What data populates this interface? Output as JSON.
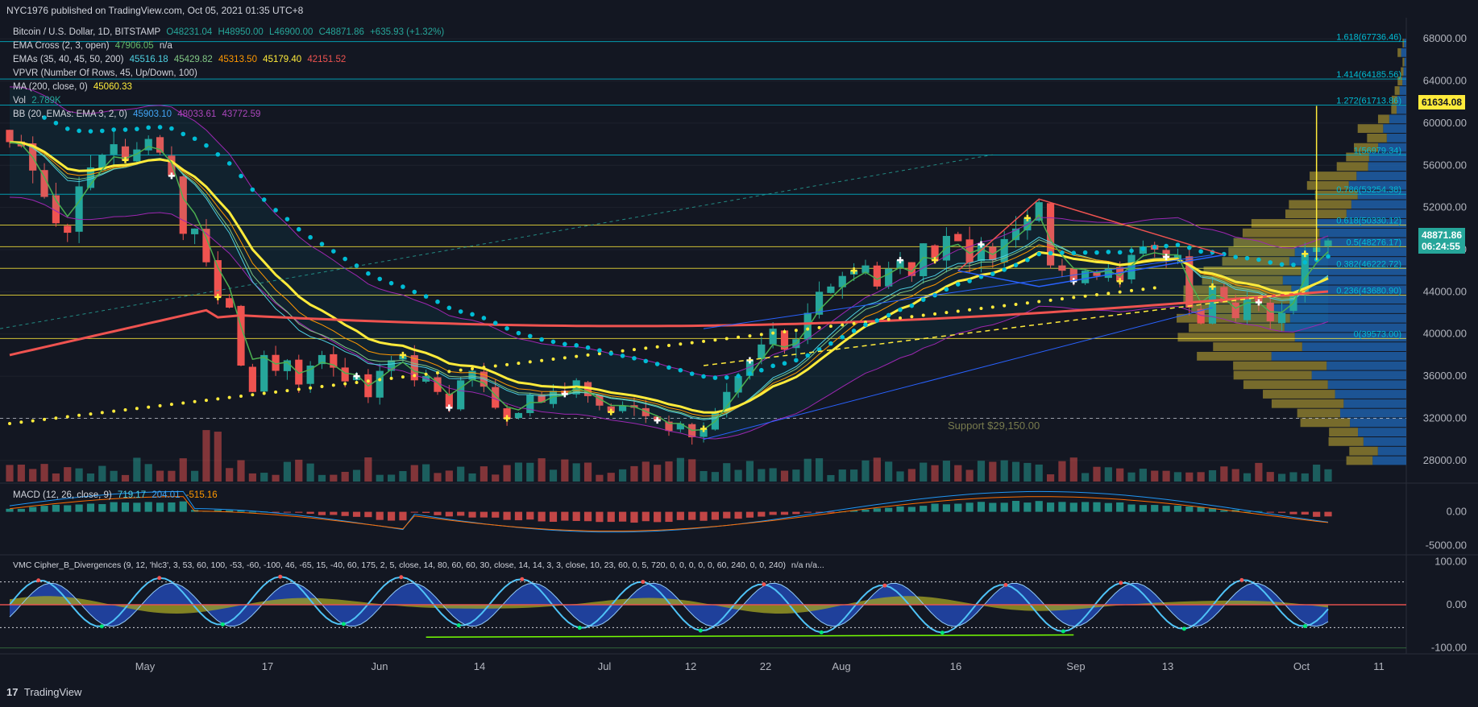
{
  "header": {
    "publisher": "NYC1976 published on TradingView.com, Oct 05, 2021 01:35 UTC+8"
  },
  "footer": {
    "brand": "TradingView",
    "logo": "17"
  },
  "legend": {
    "symbol": "Bitcoin / U.S. Dollar, 1D, BITSTAMP",
    "ohlc": {
      "o": "O48231.04",
      "h": "H48950.00",
      "l": "L46900.00",
      "c": "C48871.86",
      "chg": "+635.93 (+1.32%)"
    },
    "ema_cross": {
      "name": "EMA Cross (2, 3, open)",
      "v1": "47906.05",
      "v2": "n/a"
    },
    "emas": {
      "name": "EMAs (35, 40, 45, 50, 200)",
      "v": [
        "45516.18",
        "45429.82",
        "45313.50",
        "45179.40",
        "42151.52"
      ]
    },
    "vpvr": {
      "name": "VPVR (Number Of Rows, 45, Up/Down, 100)"
    },
    "ma": {
      "name": "MA (200, close, 0)",
      "v": "45060.33"
    },
    "vol": {
      "name": "Vol",
      "v": "2.789K"
    },
    "bb": {
      "name": "BB (20, EMAs: EMA 3, 2, 0)",
      "v": [
        "45903.10",
        "48033.61",
        "43772.59"
      ]
    },
    "macd": {
      "name": "MACD (12, 26, close, 9)",
      "v": [
        "719.17",
        "204.01",
        "-515.16"
      ]
    },
    "cipher": {
      "name": "VMC Cipher_B_Divergences (9, 12, 'hlc3', 3, 53, 60, 100, -53, -60, -100, 46, -65, 15, -40, 60, 175, 2, 5, close, 14, 80, 60, 60, 30, close, 14, 14, 3, 3, close, 10, 23, 60, 0, 5, 720, 0, 0, 0, 0, 0, 60, 240, 0, 0, 240)",
      "tail": "n/a  n/a..."
    }
  },
  "price_tags": {
    "last": "48871.86",
    "countdown": "06:24:55",
    "target": "61634.08"
  },
  "colors": {
    "bg": "#131722",
    "grid": "#1e222d",
    "up": "#26a69a",
    "down": "#ef5350",
    "ema_cross": "#4caf50",
    "ma200": "#ef5350",
    "ema_yellow": "#ffeb3b",
    "dots": "#00bcd4",
    "vpvr_up": "#1e5fa8",
    "vpvr_down": "#8a7a2e",
    "fib": "#00bcd4"
  },
  "chart_data": [
    {
      "type": "candlestick",
      "title": "Bitcoin / U.S. Dollar, 1D, BITSTAMP",
      "price_axis_ticks": [
        "68000.00",
        "64000.00",
        "60000.00",
        "56000.00",
        "52000.00",
        "48000.00",
        "44000.00",
        "40000.00",
        "36000.00",
        "32000.00",
        "28000.00"
      ],
      "ylim": [
        26000,
        70000
      ],
      "x_ticks": [
        "May",
        "17",
        "Jun",
        "14",
        "Jul",
        "12",
        "22",
        "Aug",
        "16",
        "Sep",
        "13",
        "Oct",
        "11"
      ],
      "close_path": [
        58200,
        57800,
        55500,
        53000,
        50500,
        49600,
        54000,
        55800,
        57000,
        58000,
        56500,
        57500,
        58500,
        57200,
        55000,
        49500,
        50000,
        46800,
        43500,
        42500,
        37000,
        34500,
        38000,
        36500,
        37500,
        35200,
        37000,
        38000,
        36800,
        35500,
        36000,
        34000,
        36500,
        37500,
        38000,
        35600,
        36000,
        34500,
        33000,
        35600,
        36500,
        35000,
        33000,
        32000,
        32500,
        34200,
        33500,
        34600,
        34300,
        35600,
        34100,
        33200,
        32600,
        33200,
        33000,
        32200,
        31800,
        30800,
        31500,
        30200,
        31000,
        32500,
        34500,
        36000,
        37500,
        39000,
        40500,
        38500,
        39500,
        42000,
        44000,
        44500,
        45500,
        46000,
        46500,
        44500,
        46200,
        47000,
        45500,
        48600,
        47000,
        49300,
        48800,
        46800,
        48500,
        47000,
        49000,
        50000,
        51000,
        52500,
        46500,
        46000,
        45000,
        46000,
        45500,
        46200,
        45000,
        47500,
        48300,
        48000,
        47300,
        47500,
        42500,
        41000,
        44500,
        43000,
        41500,
        43500,
        43000,
        41200,
        42000,
        43800,
        47600,
        48200,
        48871
      ],
      "fib_levels": [
        {
          "label": "1.618(67736.46)",
          "price": 67736.46
        },
        {
          "label": "1.414(64185.56)",
          "price": 64185.56
        },
        {
          "label": "1.272(61713.86)",
          "price": 61713.86
        },
        {
          "label": "1(56979.34)",
          "price": 56979.34
        },
        {
          "label": "0.786(53254.38)",
          "price": 53254.38
        },
        {
          "label": "0.618(50330.12)",
          "price": 50330.12
        },
        {
          "label": "0.5(48276.17)",
          "price": 48276.17
        },
        {
          "label": "0.382(46222.72)",
          "price": 46222.72
        },
        {
          "label": "0.236(43680.90)",
          "price": 43680.9
        },
        {
          "label": "0(39573.00)",
          "price": 39573.0
        }
      ],
      "annotations": [
        {
          "label": "Support $29,150.00",
          "price": 29150
        }
      ]
    },
    {
      "type": "bar",
      "title": "MACD (12, 26, close, 9)",
      "axis_ticks": [
        "0.00",
        "-5000.00"
      ],
      "ylim": [
        -6000,
        4000
      ]
    },
    {
      "type": "area",
      "title": "VMC Cipher_B_Divergences",
      "axis_ticks": [
        "100.00",
        "0.00",
        "-100.00"
      ],
      "ylim": [
        -110,
        110
      ]
    }
  ]
}
